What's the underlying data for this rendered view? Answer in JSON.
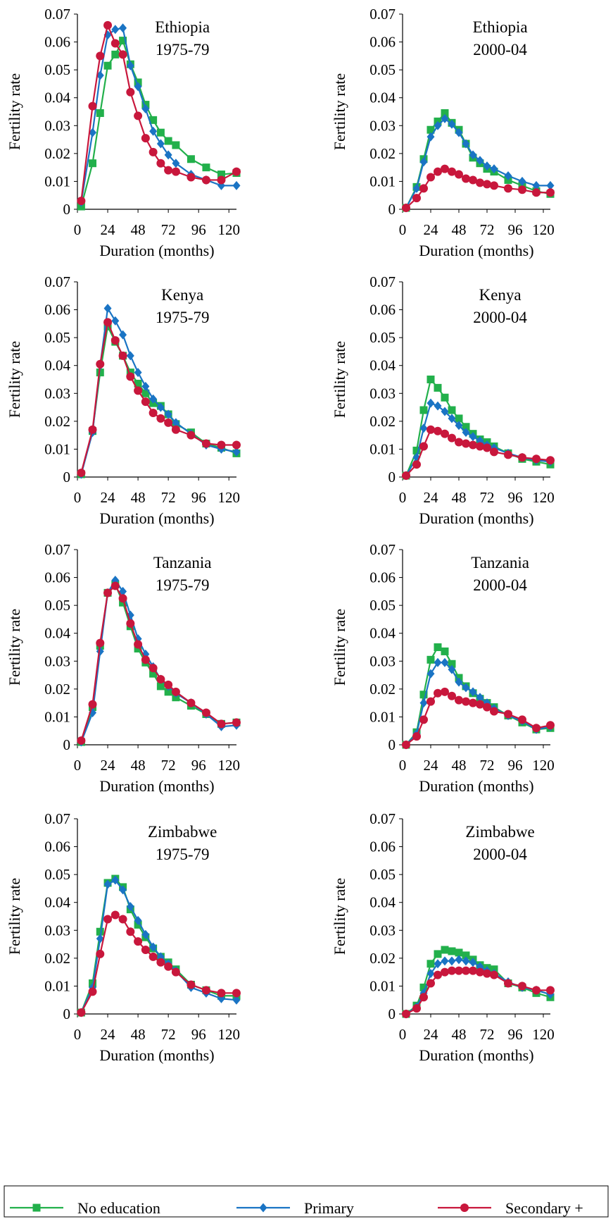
{
  "series_meta": [
    {
      "key": "none",
      "name": "No education",
      "color": "#22b04b",
      "marker": "square"
    },
    {
      "key": "primary",
      "name": "Primary",
      "color": "#1a74c4",
      "marker": "diamond"
    },
    {
      "key": "secondary",
      "name": "Secondary +",
      "color": "#c8173c",
      "marker": "circle"
    }
  ],
  "chart_data": [
    {
      "type": "line",
      "title_line1": "Ethiopia",
      "title_line2": "1975-79",
      "xlabel": "Duration (months)",
      "ylabel": "Fertility rate",
      "xticks": [
        0,
        24,
        48,
        72,
        96,
        120
      ],
      "ytick_labels": [
        "0",
        "0.01",
        "0.02",
        "0.03",
        "0.04",
        "0.05",
        "0.06",
        "0.07"
      ],
      "xlim": [
        0,
        126
      ],
      "ylim": [
        0,
        0.07
      ],
      "x": [
        3,
        12,
        18,
        24,
        30,
        36,
        42,
        48,
        54,
        60,
        66,
        72,
        78,
        90,
        102,
        114,
        126
      ],
      "series": [
        {
          "name": "No education",
          "values": [
            0.001,
            0.0165,
            0.0345,
            0.0515,
            0.0555,
            0.0605,
            0.052,
            0.0455,
            0.0375,
            0.032,
            0.0275,
            0.0245,
            0.023,
            0.018,
            0.015,
            0.0125,
            0.013
          ]
        },
        {
          "name": "Primary",
          "values": [
            0.0025,
            0.0275,
            0.048,
            0.0625,
            0.0645,
            0.065,
            0.0515,
            0.044,
            0.036,
            0.028,
            0.0235,
            0.0195,
            0.0165,
            0.0125,
            0.0105,
            0.0085,
            0.0085
          ]
        },
        {
          "name": "Secondary +",
          "values": [
            0.003,
            0.037,
            0.055,
            0.066,
            0.0595,
            0.0555,
            0.042,
            0.0335,
            0.0255,
            0.0205,
            0.0165,
            0.014,
            0.0135,
            0.0115,
            0.0105,
            0.0105,
            0.0135
          ]
        }
      ]
    },
    {
      "type": "line",
      "title_line1": "Ethiopia",
      "title_line2": "2000-04",
      "xlabel": "Duration (months)",
      "ylabel": "Fertility rate",
      "xticks": [
        0,
        24,
        48,
        72,
        96,
        120
      ],
      "ytick_labels": [
        "0",
        "0.01",
        "0.02",
        "0.03",
        "0.04",
        "0.05",
        "0.06",
        "0.07"
      ],
      "xlim": [
        0,
        126
      ],
      "ylim": [
        0,
        0.07
      ],
      "x": [
        3,
        12,
        18,
        24,
        30,
        36,
        42,
        48,
        54,
        60,
        66,
        72,
        78,
        90,
        102,
        114,
        126
      ],
      "series": [
        {
          "name": "No education",
          "values": [
            0.0005,
            0.008,
            0.018,
            0.0285,
            0.0315,
            0.0345,
            0.031,
            0.0285,
            0.0235,
            0.0185,
            0.0165,
            0.0145,
            0.0135,
            0.0105,
            0.0085,
            0.0065,
            0.0055
          ]
        },
        {
          "name": "Primary",
          "values": [
            0.0005,
            0.0075,
            0.017,
            0.026,
            0.03,
            0.0325,
            0.0305,
            0.0275,
            0.0235,
            0.0195,
            0.0175,
            0.0155,
            0.0145,
            0.012,
            0.01,
            0.0085,
            0.0085
          ]
        },
        {
          "name": "Secondary +",
          "values": [
            0.0005,
            0.004,
            0.0075,
            0.0115,
            0.0135,
            0.0145,
            0.0135,
            0.0125,
            0.011,
            0.0105,
            0.0095,
            0.009,
            0.0085,
            0.0075,
            0.007,
            0.006,
            0.006
          ]
        }
      ]
    },
    {
      "type": "line",
      "title_line1": "Kenya",
      "title_line2": "1975-79",
      "xlabel": "Duration (months)",
      "ylabel": "Fertility rate",
      "xticks": [
        0,
        24,
        48,
        72,
        96,
        120
      ],
      "ytick_labels": [
        "0",
        "0.01",
        "0.02",
        "0.03",
        "0.04",
        "0.05",
        "0.06",
        "0.07"
      ],
      "xlim": [
        0,
        126
      ],
      "ylim": [
        0,
        0.07
      ],
      "x": [
        3,
        12,
        18,
        24,
        30,
        36,
        42,
        48,
        54,
        60,
        66,
        72,
        78,
        90,
        102,
        114,
        126
      ],
      "series": [
        {
          "name": "No education",
          "values": [
            0.001,
            0.0165,
            0.0375,
            0.054,
            0.0485,
            0.0435,
            0.0375,
            0.0335,
            0.03,
            0.0265,
            0.0255,
            0.0225,
            0.019,
            0.016,
            0.012,
            0.0105,
            0.0085
          ]
        },
        {
          "name": "Primary",
          "values": [
            0.001,
            0.016,
            0.04,
            0.0605,
            0.056,
            0.051,
            0.0435,
            0.0375,
            0.0325,
            0.028,
            0.025,
            0.0225,
            0.0195,
            0.0155,
            0.0115,
            0.01,
            0.009
          ]
        },
        {
          "name": "Secondary +",
          "values": [
            0.0015,
            0.017,
            0.0405,
            0.0555,
            0.049,
            0.0435,
            0.036,
            0.031,
            0.027,
            0.023,
            0.021,
            0.0195,
            0.017,
            0.015,
            0.012,
            0.0115,
            0.0115
          ]
        }
      ]
    },
    {
      "type": "line",
      "title_line1": "Kenya",
      "title_line2": "2000-04",
      "xlabel": "Duration (months)",
      "ylabel": "Fertility rate",
      "xticks": [
        0,
        24,
        48,
        72,
        96,
        120
      ],
      "ytick_labels": [
        "0",
        "0.01",
        "0.02",
        "0.03",
        "0.04",
        "0.05",
        "0.06",
        "0.07"
      ],
      "xlim": [
        0,
        126
      ],
      "ylim": [
        0,
        0.07
      ],
      "x": [
        3,
        12,
        18,
        24,
        30,
        36,
        42,
        48,
        54,
        60,
        66,
        72,
        78,
        90,
        102,
        114,
        126
      ],
      "series": [
        {
          "name": "No education",
          "values": [
            0.0005,
            0.0095,
            0.024,
            0.035,
            0.032,
            0.0285,
            0.024,
            0.021,
            0.018,
            0.0155,
            0.0135,
            0.0125,
            0.011,
            0.0085,
            0.0065,
            0.0055,
            0.0045
          ]
        },
        {
          "name": "Primary",
          "values": [
            0.0005,
            0.007,
            0.0175,
            0.0265,
            0.0255,
            0.0235,
            0.021,
            0.0185,
            0.016,
            0.0145,
            0.013,
            0.0115,
            0.0105,
            0.0085,
            0.007,
            0.006,
            0.0055
          ]
        },
        {
          "name": "Secondary +",
          "values": [
            0.0005,
            0.0045,
            0.011,
            0.017,
            0.0165,
            0.0155,
            0.014,
            0.0125,
            0.012,
            0.0115,
            0.011,
            0.0105,
            0.009,
            0.008,
            0.007,
            0.0065,
            0.006
          ]
        }
      ]
    },
    {
      "type": "line",
      "title_line1": "Tanzania",
      "title_line2": "1975-79",
      "xlabel": "Duration (months)",
      "ylabel": "Fertility rate",
      "xticks": [
        0,
        24,
        48,
        72,
        96,
        120
      ],
      "ytick_labels": [
        "0",
        "0.01",
        "0.02",
        "0.03",
        "0.04",
        "0.05",
        "0.06",
        "0.07"
      ],
      "xlim": [
        0,
        126
      ],
      "ylim": [
        0,
        0.07
      ],
      "x": [
        3,
        12,
        18,
        24,
        30,
        36,
        42,
        48,
        54,
        60,
        66,
        72,
        78,
        90,
        102,
        114,
        126
      ],
      "series": [
        {
          "name": "No education",
          "values": [
            0.001,
            0.0135,
            0.0355,
            0.0545,
            0.0575,
            0.051,
            0.0425,
            0.0345,
            0.0295,
            0.0255,
            0.021,
            0.019,
            0.017,
            0.014,
            0.011,
            0.0075,
            0.008
          ]
        },
        {
          "name": "Primary",
          "values": [
            0.001,
            0.0115,
            0.0335,
            0.0545,
            0.059,
            0.055,
            0.0465,
            0.038,
            0.0325,
            0.028,
            0.0235,
            0.021,
            0.0185,
            0.015,
            0.011,
            0.0065,
            0.007
          ]
        },
        {
          "name": "Secondary +",
          "values": [
            0.0015,
            0.0145,
            0.0365,
            0.0545,
            0.057,
            0.0525,
            0.0435,
            0.036,
            0.0305,
            0.0275,
            0.0235,
            0.0215,
            0.019,
            0.015,
            0.0115,
            0.0075,
            0.008
          ]
        }
      ]
    },
    {
      "type": "line",
      "title_line1": "Tanzania",
      "title_line2": "2000-04",
      "xlabel": "Duration (months)",
      "ylabel": "Fertility rate",
      "xticks": [
        0,
        24,
        48,
        72,
        96,
        120
      ],
      "ytick_labels": [
        "0",
        "0.01",
        "0.02",
        "0.03",
        "0.04",
        "0.05",
        "0.06",
        "0.07"
      ],
      "xlim": [
        0,
        126
      ],
      "ylim": [
        0,
        0.07
      ],
      "x": [
        3,
        12,
        18,
        24,
        30,
        36,
        42,
        48,
        54,
        60,
        66,
        72,
        78,
        90,
        102,
        114,
        126
      ],
      "series": [
        {
          "name": "No education",
          "values": [
            0,
            0.0045,
            0.018,
            0.0305,
            0.035,
            0.0335,
            0.029,
            0.024,
            0.021,
            0.0185,
            0.0165,
            0.015,
            0.0135,
            0.0105,
            0.008,
            0.0055,
            0.006
          ]
        },
        {
          "name": "Primary",
          "values": [
            0,
            0.004,
            0.015,
            0.0255,
            0.0295,
            0.0295,
            0.027,
            0.0225,
            0.0205,
            0.019,
            0.017,
            0.015,
            0.013,
            0.0105,
            0.0085,
            0.0055,
            0.0065
          ]
        },
        {
          "name": "Secondary +",
          "values": [
            0,
            0.003,
            0.009,
            0.0155,
            0.0185,
            0.019,
            0.0175,
            0.016,
            0.0155,
            0.015,
            0.0145,
            0.0135,
            0.012,
            0.011,
            0.009,
            0.006,
            0.007
          ]
        }
      ]
    },
    {
      "type": "line",
      "title_line1": "Zimbabwe",
      "title_line2": "1975-79",
      "xlabel": "Duration (months)",
      "ylabel": "Fertility rate",
      "xticks": [
        0,
        24,
        48,
        72,
        96,
        120
      ],
      "ytick_labels": [
        "0",
        "0.01",
        "0.02",
        "0.03",
        "0.04",
        "0.05",
        "0.06",
        "0.07"
      ],
      "xlim": [
        0,
        126
      ],
      "ylim": [
        0,
        0.07
      ],
      "x": [
        3,
        12,
        18,
        24,
        30,
        36,
        42,
        48,
        54,
        60,
        66,
        72,
        78,
        90,
        102,
        114,
        126
      ],
      "series": [
        {
          "name": "No education",
          "values": [
            0.0005,
            0.011,
            0.0295,
            0.047,
            0.0485,
            0.0455,
            0.0375,
            0.032,
            0.0275,
            0.0235,
            0.0205,
            0.0185,
            0.016,
            0.0105,
            0.0085,
            0.0065,
            0.0065
          ]
        },
        {
          "name": "Primary",
          "values": [
            0.0005,
            0.0095,
            0.027,
            0.0465,
            0.048,
            0.0445,
            0.0385,
            0.0335,
            0.0285,
            0.024,
            0.0205,
            0.018,
            0.0155,
            0.0095,
            0.0075,
            0.0055,
            0.005
          ]
        },
        {
          "name": "Secondary +",
          "values": [
            0.0005,
            0.008,
            0.0215,
            0.034,
            0.0355,
            0.034,
            0.0295,
            0.026,
            0.023,
            0.0205,
            0.0185,
            0.017,
            0.015,
            0.0105,
            0.0085,
            0.0075,
            0.0075
          ]
        }
      ]
    },
    {
      "type": "line",
      "title_line1": "Zimbabwe",
      "title_line2": "2000-04",
      "xlabel": "Duration (months)",
      "ylabel": "Fertility rate",
      "xticks": [
        0,
        24,
        48,
        72,
        96,
        120
      ],
      "ytick_labels": [
        "0",
        "0.01",
        "0.02",
        "0.03",
        "0.04",
        "0.05",
        "0.06",
        "0.07"
      ],
      "xlim": [
        0,
        126
      ],
      "ylim": [
        0,
        0.07
      ],
      "x": [
        3,
        12,
        18,
        24,
        30,
        36,
        42,
        48,
        54,
        60,
        66,
        72,
        78,
        90,
        102,
        114,
        126
      ],
      "series": [
        {
          "name": "No education",
          "values": [
            0,
            0.003,
            0.0095,
            0.018,
            0.0215,
            0.023,
            0.0225,
            0.022,
            0.021,
            0.0195,
            0.0175,
            0.0165,
            0.016,
            0.011,
            0.0095,
            0.0075,
            0.006
          ]
        },
        {
          "name": "Primary",
          "values": [
            0,
            0.0025,
            0.0075,
            0.0145,
            0.018,
            0.019,
            0.019,
            0.0195,
            0.019,
            0.0185,
            0.017,
            0.0155,
            0.0145,
            0.0115,
            0.0095,
            0.0085,
            0.007
          ]
        },
        {
          "name": "Secondary +",
          "values": [
            0,
            0.002,
            0.006,
            0.011,
            0.014,
            0.015,
            0.0155,
            0.0155,
            0.0155,
            0.0155,
            0.015,
            0.0145,
            0.014,
            0.011,
            0.01,
            0.0085,
            0.0085
          ]
        }
      ]
    }
  ]
}
